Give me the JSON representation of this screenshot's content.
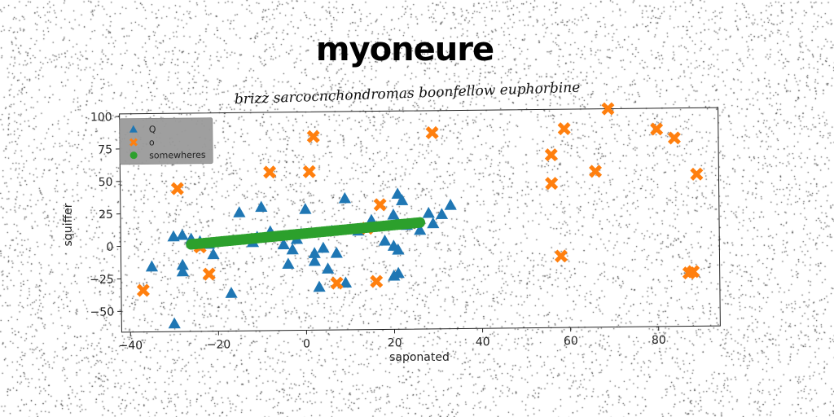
{
  "chart_data": {
    "type": "scatter",
    "title": "myoneure",
    "subtitle": "brizz sarcocnchondromas boonfellow euphorbine",
    "xlabel": "saponated",
    "ylabel": "squiffer",
    "xlim": [
      -42,
      94
    ],
    "ylim": [
      -66,
      102
    ],
    "xticks": [
      -40,
      -20,
      0,
      20,
      40,
      60,
      80
    ],
    "yticks": [
      -50,
      -25,
      0,
      25,
      50,
      75,
      100
    ],
    "grid": false,
    "legend_position": "top-left",
    "series": [
      {
        "name": "Q",
        "marker": "triangle",
        "color": "#1f77b4",
        "points": [
          [
            -30,
            7
          ],
          [
            -28,
            8
          ],
          [
            -28,
            -15
          ],
          [
            -28,
            -20
          ],
          [
            -26,
            5
          ],
          [
            -24,
            3
          ],
          [
            -22,
            1
          ],
          [
            -21,
            -7
          ],
          [
            -17,
            -37
          ],
          [
            -15,
            25
          ],
          [
            -12,
            2
          ],
          [
            -11,
            6
          ],
          [
            -10,
            29
          ],
          [
            -8,
            10
          ],
          [
            -5,
            0
          ],
          [
            -4,
            -15
          ],
          [
            -3,
            -4
          ],
          [
            -2,
            4
          ],
          [
            -1,
            8
          ],
          [
            0,
            27
          ],
          [
            2,
            -7
          ],
          [
            2,
            -13
          ],
          [
            3,
            -33
          ],
          [
            4,
            -3
          ],
          [
            5,
            -19
          ],
          [
            6,
            10
          ],
          [
            7,
            -7
          ],
          [
            9,
            35
          ],
          [
            12,
            10
          ],
          [
            15,
            18
          ],
          [
            18,
            2
          ],
          [
            20,
            -2
          ],
          [
            20,
            22
          ],
          [
            21,
            -23
          ],
          [
            21,
            -5
          ],
          [
            21,
            38
          ],
          [
            22,
            33
          ],
          [
            23,
            14
          ],
          [
            26,
            10
          ],
          [
            28,
            23
          ],
          [
            29,
            15
          ],
          [
            31,
            22
          ],
          [
            33,
            29
          ],
          [
            -35,
            -16
          ],
          [
            -30,
            -60
          ],
          [
            9,
            -30
          ],
          [
            20,
            -25
          ]
        ]
      },
      {
        "name": "o",
        "marker": "x",
        "color": "#ff7f0e",
        "points": [
          [
            -37,
            -34
          ],
          [
            -29,
            44
          ],
          [
            -24,
            -1
          ],
          [
            -22,
            -22
          ],
          [
            -8,
            56
          ],
          [
            1,
            56
          ],
          [
            2,
            83
          ],
          [
            7,
            -30
          ],
          [
            14,
            12
          ],
          [
            16,
            -29
          ],
          [
            17,
            30
          ],
          [
            29,
            85
          ],
          [
            56,
            67
          ],
          [
            56,
            45
          ],
          [
            58,
            -11
          ],
          [
            59,
            87
          ],
          [
            66,
            54
          ],
          [
            69,
            102
          ],
          [
            80,
            86
          ],
          [
            84,
            79
          ],
          [
            87,
            -25
          ],
          [
            88,
            -24
          ],
          [
            89,
            51
          ]
        ]
      },
      {
        "name": "somewheres",
        "marker": "circle",
        "color": "#2ca02c",
        "line_from": [
          -26,
          1
        ],
        "line_to": [
          26,
          16
        ],
        "count": 90
      }
    ]
  }
}
